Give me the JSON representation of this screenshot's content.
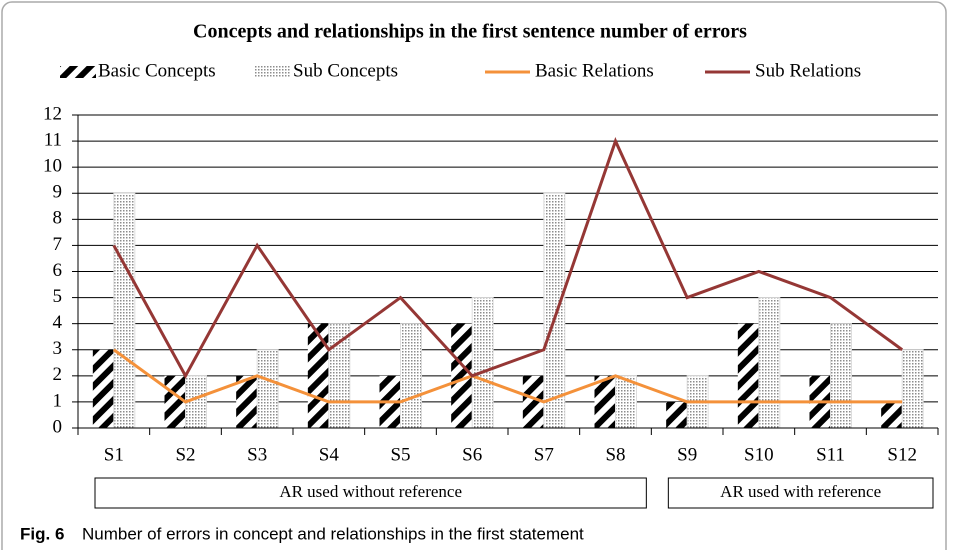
{
  "chart_data": {
    "type": "bar",
    "title": "Concepts and relationships in the first sentence number of errors",
    "categories": [
      "S1",
      "S2",
      "S3",
      "S4",
      "S5",
      "S6",
      "S7",
      "S8",
      "S9",
      "S10",
      "S11",
      "S12"
    ],
    "series": [
      {
        "name": "Basic Concepts",
        "type": "bar",
        "pattern": "hatch",
        "color": "#000000",
        "values": [
          3,
          2,
          2,
          4,
          2,
          4,
          2,
          2,
          1,
          4,
          2,
          1
        ]
      },
      {
        "name": "Sub Concepts",
        "type": "bar",
        "pattern": "dots",
        "color": "#8c8c8c",
        "values": [
          9,
          2,
          3,
          4,
          4,
          5,
          9,
          2,
          2,
          5,
          4,
          3
        ]
      },
      {
        "name": "Basic Relations",
        "type": "line",
        "color": "#f4913a",
        "values": [
          3,
          1,
          2,
          1,
          1,
          2,
          1,
          2,
          1,
          1,
          1,
          1
        ]
      },
      {
        "name": "Sub Relations",
        "type": "line",
        "color": "#953735",
        "values": [
          7,
          2,
          7,
          3,
          5,
          2,
          3,
          11,
          5,
          6,
          5,
          3
        ]
      }
    ],
    "groups": [
      {
        "label": "AR used without reference",
        "categories": [
          "S1",
          "S2",
          "S3",
          "S4",
          "S5",
          "S6",
          "S7",
          "S8"
        ]
      },
      {
        "label": "AR used with reference",
        "categories": [
          "S9",
          "S10",
          "S11",
          "S12"
        ]
      }
    ],
    "ylim": [
      0,
      12
    ],
    "yticks": [
      0,
      1,
      2,
      3,
      4,
      5,
      6,
      7,
      8,
      9,
      10,
      11,
      12
    ],
    "grid": true,
    "legend": "top"
  },
  "figure": {
    "label": "Fig. 6",
    "text": "Number of errors in concept and relationships in the first statement"
  }
}
